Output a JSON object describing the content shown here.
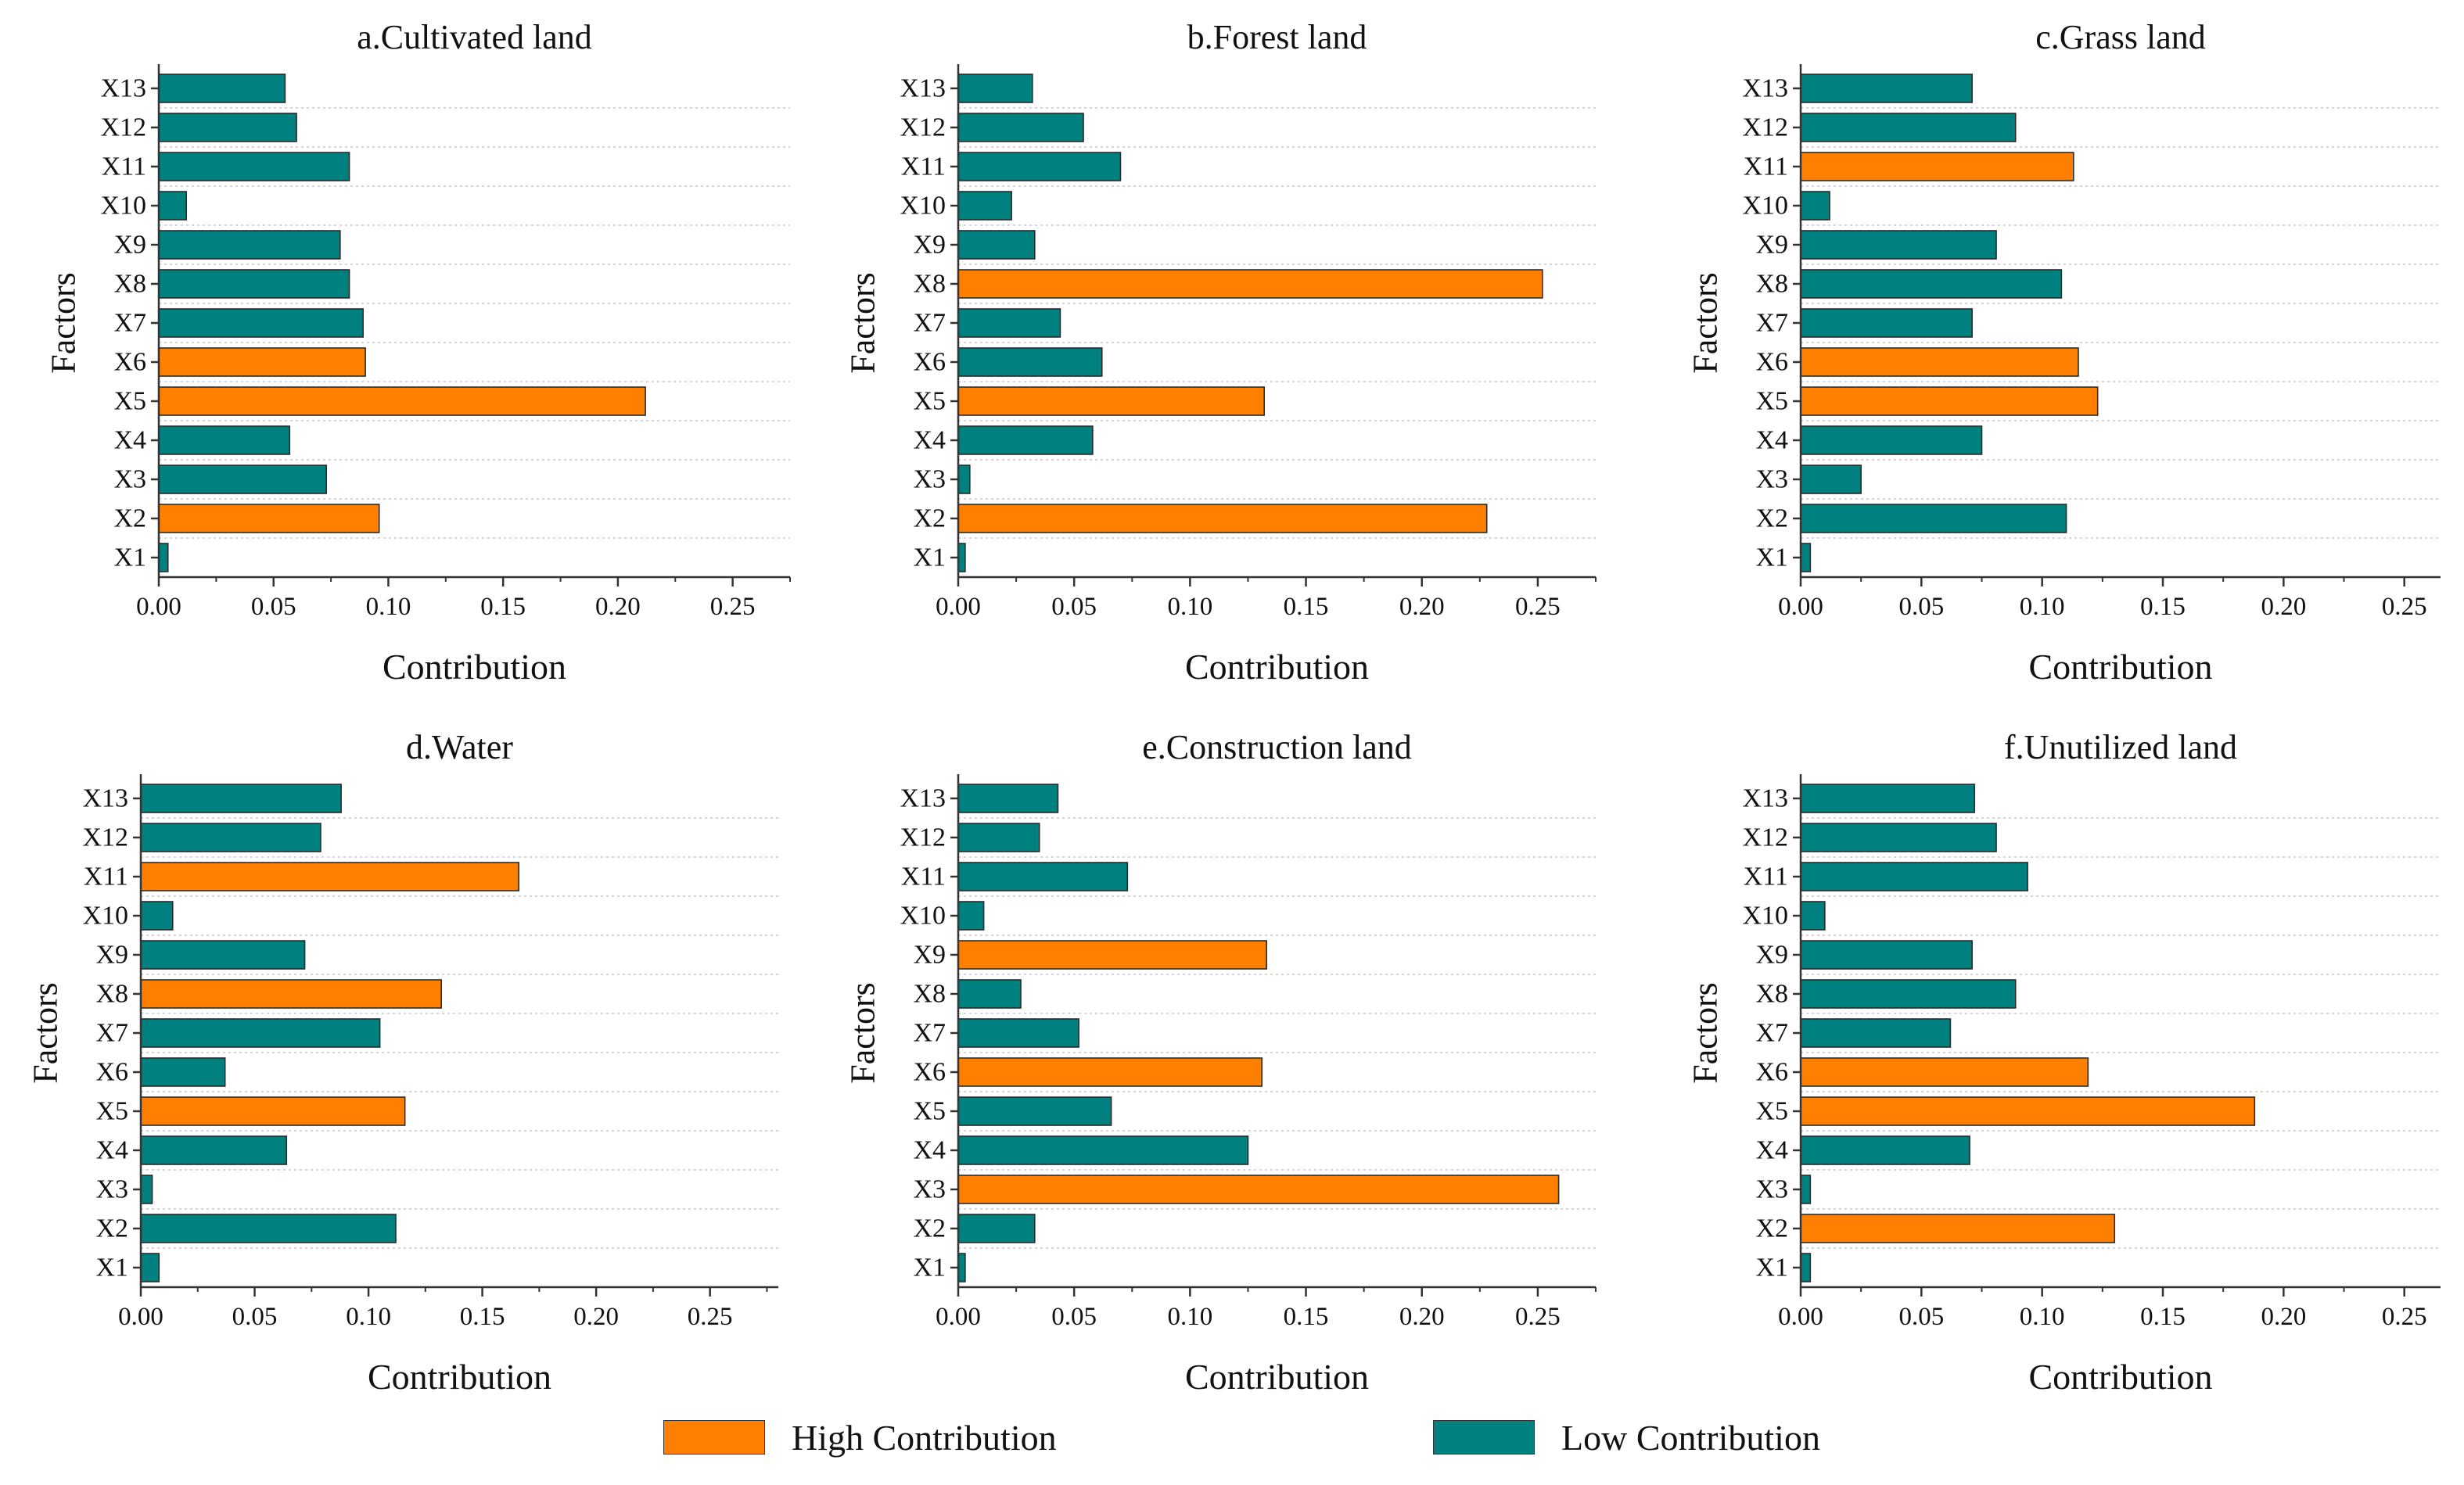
{
  "chart_data": [
    {
      "type": "bar",
      "orientation": "horizontal",
      "title": "a.Cultivated land",
      "xlabel": "Contribution",
      "ylabel": "Factors",
      "xlim": [
        0,
        0.275
      ],
      "xticks": [
        "0.00",
        "0.05",
        "0.10",
        "0.15",
        "0.20",
        "0.25"
      ],
      "categories": [
        "X1",
        "X2",
        "X3",
        "X4",
        "X5",
        "X6",
        "X7",
        "X8",
        "X9",
        "X10",
        "X11",
        "X12",
        "X13"
      ],
      "values": [
        0.004,
        0.096,
        0.073,
        0.057,
        0.212,
        0.09,
        0.089,
        0.083,
        0.079,
        0.012,
        0.083,
        0.06,
        0.055
      ],
      "levels": [
        "low",
        "high",
        "low",
        "low",
        "high",
        "high",
        "low",
        "low",
        "low",
        "low",
        "low",
        "low",
        "low"
      ]
    },
    {
      "type": "bar",
      "orientation": "horizontal",
      "title": "b.Forest land",
      "xlabel": "Contribution",
      "ylabel": "Factors",
      "xlim": [
        0,
        0.275
      ],
      "xticks": [
        "0.00",
        "0.05",
        "0.10",
        "0.15",
        "0.20",
        "0.25"
      ],
      "categories": [
        "X1",
        "X2",
        "X3",
        "X4",
        "X5",
        "X6",
        "X7",
        "X8",
        "X9",
        "X10",
        "X11",
        "X12",
        "X13"
      ],
      "values": [
        0.003,
        0.228,
        0.005,
        0.058,
        0.132,
        0.062,
        0.044,
        0.252,
        0.033,
        0.023,
        0.07,
        0.054,
        0.032
      ],
      "levels": [
        "low",
        "high",
        "low",
        "low",
        "high",
        "low",
        "low",
        "high",
        "low",
        "low",
        "low",
        "low",
        "low"
      ]
    },
    {
      "type": "bar",
      "orientation": "horizontal",
      "title": "c.Grass land",
      "xlabel": "Contribution",
      "ylabel": "Factors",
      "xlim": [
        0,
        0.265
      ],
      "xticks": [
        "0.00",
        "0.05",
        "0.10",
        "0.15",
        "0.20",
        "0.25"
      ],
      "categories": [
        "X1",
        "X2",
        "X3",
        "X4",
        "X5",
        "X6",
        "X7",
        "X8",
        "X9",
        "X10",
        "X11",
        "X12",
        "X13"
      ],
      "values": [
        0.004,
        0.11,
        0.025,
        0.075,
        0.123,
        0.115,
        0.071,
        0.108,
        0.081,
        0.012,
        0.113,
        0.089,
        0.071
      ],
      "levels": [
        "low",
        "low",
        "low",
        "low",
        "high",
        "high",
        "low",
        "low",
        "low",
        "low",
        "high",
        "low",
        "low"
      ]
    },
    {
      "type": "bar",
      "orientation": "horizontal",
      "title": "d.Water",
      "xlabel": "Contribution",
      "ylabel": "Factors",
      "xlim": [
        0,
        0.28
      ],
      "xticks": [
        "0.00",
        "0.05",
        "0.10",
        "0.15",
        "0.20",
        "0.25"
      ],
      "categories": [
        "X1",
        "X2",
        "X3",
        "X4",
        "X5",
        "X6",
        "X7",
        "X8",
        "X9",
        "X10",
        "X11",
        "X12",
        "X13"
      ],
      "values": [
        0.008,
        0.112,
        0.005,
        0.064,
        0.116,
        0.037,
        0.105,
        0.132,
        0.072,
        0.014,
        0.166,
        0.079,
        0.088
      ],
      "levels": [
        "low",
        "low",
        "low",
        "low",
        "high",
        "low",
        "low",
        "high",
        "low",
        "low",
        "high",
        "low",
        "low"
      ]
    },
    {
      "type": "bar",
      "orientation": "horizontal",
      "title": "e.Construction land",
      "xlabel": "Contribution",
      "ylabel": "Factors",
      "xlim": [
        0,
        0.275
      ],
      "xticks": [
        "0.00",
        "0.05",
        "0.10",
        "0.15",
        "0.20",
        "0.25"
      ],
      "categories": [
        "X1",
        "X2",
        "X3",
        "X4",
        "X5",
        "X6",
        "X7",
        "X8",
        "X9",
        "X10",
        "X11",
        "X12",
        "X13"
      ],
      "values": [
        0.003,
        0.033,
        0.259,
        0.125,
        0.066,
        0.131,
        0.052,
        0.027,
        0.133,
        0.011,
        0.073,
        0.035,
        0.043
      ],
      "levels": [
        "low",
        "low",
        "high",
        "low",
        "low",
        "high",
        "low",
        "low",
        "high",
        "low",
        "low",
        "low",
        "low"
      ]
    },
    {
      "type": "bar",
      "orientation": "horizontal",
      "title": "f.Unutilized land",
      "xlabel": "Contribution",
      "ylabel": "Factors",
      "xlim": [
        0,
        0.265
      ],
      "xticks": [
        "0.00",
        "0.05",
        "0.10",
        "0.15",
        "0.20",
        "0.25"
      ],
      "categories": [
        "X1",
        "X2",
        "X3",
        "X4",
        "X5",
        "X6",
        "X7",
        "X8",
        "X9",
        "X10",
        "X11",
        "X12",
        "X13"
      ],
      "values": [
        0.004,
        0.13,
        0.004,
        0.07,
        0.188,
        0.119,
        0.062,
        0.089,
        0.071,
        0.01,
        0.094,
        0.081,
        0.072
      ],
      "levels": [
        "low",
        "high",
        "low",
        "low",
        "high",
        "high",
        "low",
        "low",
        "low",
        "low",
        "low",
        "low",
        "low"
      ]
    }
  ],
  "legend": {
    "high_label": "High Contribution",
    "low_label": "Low Contribution"
  },
  "colors": {
    "high": "#ff8000",
    "low": "#00807f",
    "bar_outline": "#2b2b2b",
    "axis": "#333333",
    "grid": "#c8c8c8"
  }
}
